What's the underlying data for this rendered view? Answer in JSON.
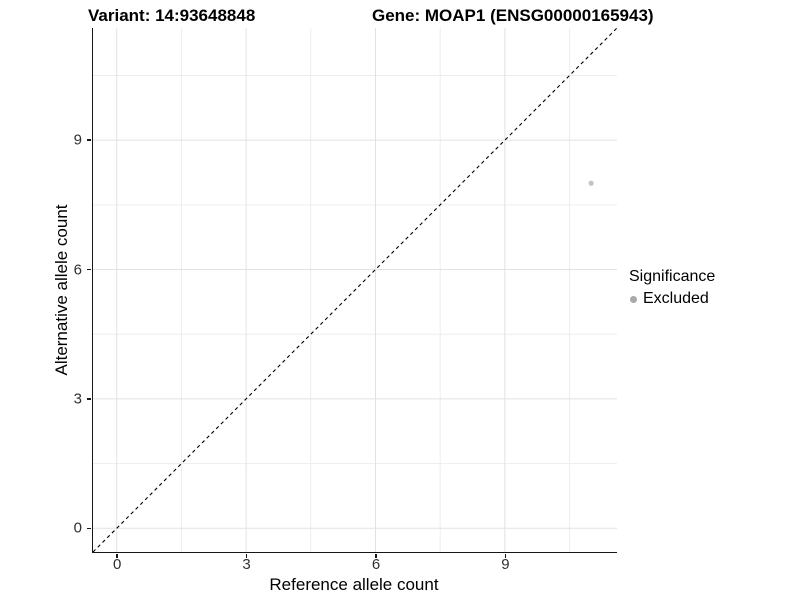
{
  "figure": {
    "title_variant": "Variant: 14:93648848",
    "title_gene": "Gene: MOAP1 (ENSG00000165943)"
  },
  "chart_data": {
    "type": "scatter",
    "xlabel": "Reference allele count",
    "ylabel": "Alternative allele count",
    "xlim": [
      -0.55,
      11.6
    ],
    "ylim": [
      -0.55,
      11.6
    ],
    "x_ticks": [
      0,
      3,
      6,
      9
    ],
    "y_ticks": [
      0,
      3,
      6,
      9
    ],
    "x_minor_ticks": [
      1.5,
      4.5,
      7.5,
      10.5
    ],
    "y_minor_ticks": [
      1.5,
      4.5,
      7.5,
      10.5
    ],
    "grid": "major-and-minor",
    "background": "#ffffff",
    "major_grid_color": "#e2e2e2",
    "minor_grid_color": "#ededed",
    "reference_line": {
      "type": "identity",
      "style": "dashed",
      "color": "#000000"
    },
    "points": [
      {
        "x": 11,
        "y": 8,
        "series": "Excluded",
        "color": "#c4c4c4",
        "radius": 2.6
      }
    ],
    "legend": {
      "title": "Significance",
      "position": "right",
      "entries": [
        {
          "label": "Excluded",
          "color": "#a9a9a9"
        }
      ]
    }
  }
}
